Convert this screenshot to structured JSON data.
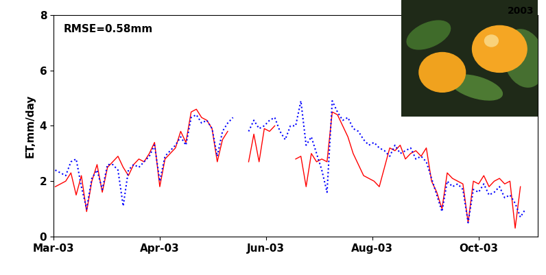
{
  "chart_data": {
    "type": "line",
    "y_label": "ET,mm/day",
    "annotations": [
      "RMSE=0.58mm",
      "2003"
    ],
    "x": [
      60,
      63,
      66,
      69,
      72,
      75,
      78,
      81,
      84,
      87,
      90,
      93,
      96,
      99,
      102,
      105,
      108,
      111,
      114,
      117,
      120,
      123,
      126,
      129,
      132,
      135,
      138,
      141,
      144,
      147,
      150,
      153,
      156,
      159,
      162,
      165,
      168,
      171,
      174,
      177,
      180,
      183,
      186,
      189,
      192,
      195,
      198,
      201,
      204,
      207,
      210,
      213,
      216,
      219,
      222,
      225,
      228,
      231,
      234,
      237,
      240,
      243,
      246,
      249,
      252,
      255,
      258,
      261,
      264,
      267,
      270,
      273,
      276,
      279,
      282,
      285,
      288,
      291,
      294,
      297,
      300,
      303,
      306,
      309,
      312,
      315,
      318,
      321,
      324,
      327,
      330
    ],
    "series": [
      {
        "color": "#ff0000",
        "line_style": "solid",
        "values": [
          1.8,
          1.9,
          2.0,
          2.3,
          1.5,
          2.2,
          0.9,
          2.0,
          2.6,
          1.6,
          2.5,
          2.7,
          2.9,
          2.5,
          2.2,
          2.6,
          2.8,
          2.7,
          3.0,
          3.4,
          1.8,
          2.8,
          3.0,
          3.2,
          3.8,
          3.4,
          4.5,
          4.6,
          4.3,
          4.2,
          3.9,
          2.7,
          3.5,
          3.8,
          null,
          null,
          null,
          2.7,
          3.7,
          2.7,
          3.9,
          3.8,
          4.0,
          null,
          null,
          null,
          2.8,
          2.9,
          1.8,
          3.0,
          2.7,
          2.8,
          2.7,
          4.5,
          4.4,
          4.0,
          3.6,
          3.0,
          2.6,
          2.2,
          2.1,
          2.0,
          1.8,
          2.5,
          3.2,
          3.1,
          3.3,
          2.8,
          3.0,
          3.1,
          2.9,
          3.2,
          2.0,
          1.6,
          1.0,
          2.3,
          2.1,
          2.0,
          1.9,
          0.5,
          2.0,
          1.9,
          2.2,
          1.8,
          2.0,
          2.1,
          1.9,
          2.0,
          0.3,
          1.8,
          null
        ]
      },
      {
        "color": "#0000ff",
        "line_style": "dotted",
        "values": [
          2.4,
          2.3,
          2.2,
          2.7,
          2.8,
          1.8,
          1.0,
          2.1,
          2.4,
          1.7,
          2.6,
          2.6,
          2.4,
          1.1,
          2.4,
          2.6,
          2.5,
          2.7,
          2.9,
          3.3,
          2.0,
          2.9,
          3.1,
          3.3,
          3.6,
          3.3,
          4.3,
          4.4,
          4.1,
          4.2,
          3.9,
          2.9,
          3.8,
          4.1,
          4.3,
          null,
          null,
          3.8,
          4.2,
          3.9,
          4.0,
          4.2,
          4.3,
          3.8,
          3.5,
          4.0,
          4.0,
          4.9,
          3.3,
          3.6,
          3.0,
          2.4,
          1.6,
          4.9,
          4.5,
          4.2,
          4.3,
          3.9,
          3.8,
          3.5,
          3.3,
          3.4,
          3.2,
          3.1,
          2.9,
          3.3,
          3.0,
          3.1,
          3.2,
          2.8,
          2.9,
          2.7,
          2.1,
          1.5,
          0.9,
          2.0,
          1.8,
          1.9,
          1.7,
          0.5,
          1.7,
          1.6,
          1.9,
          1.5,
          1.6,
          1.8,
          1.4,
          1.5,
          1.2,
          0.7,
          1.0
        ]
      }
    ],
    "xlim": [
      59,
      337
    ],
    "xticks": [
      {
        "value": 59,
        "label": "Mar-03"
      },
      {
        "value": 120,
        "label": "Apr-03"
      },
      {
        "value": 181,
        "label": "Jun-03"
      },
      {
        "value": 242,
        "label": "Aug-03"
      },
      {
        "value": 303,
        "label": "Oct-03"
      }
    ],
    "ylim": [
      0,
      8
    ],
    "yticks": [
      0,
      2,
      4,
      6,
      8
    ],
    "grid": false
  }
}
